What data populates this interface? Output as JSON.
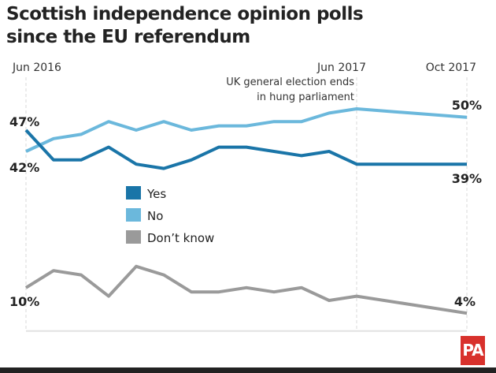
{
  "chart_data": {
    "type": "line",
    "title": "Scottish independence opinion polls since the EU referendum",
    "x": [
      "2016-06",
      "2016-07",
      "2016-08",
      "2016-09",
      "2016-10",
      "2016-11",
      "2016-12",
      "2017-01",
      "2017-02",
      "2017-03",
      "2017-04",
      "2017-05",
      "2017-06",
      "2017-10"
    ],
    "x_tick_labels": [
      {
        "x": "2016-06",
        "label": "Jun 2016"
      },
      {
        "x": "2017-06",
        "label": "Jun 2017"
      },
      {
        "x": "2017-10",
        "label": "Oct 2017"
      }
    ],
    "ylim": [
      0,
      55
    ],
    "grid": "vertical dashed at ticks",
    "legend_placement": "center-left",
    "annotation": {
      "x": "2017-06",
      "lines": [
        "UK general election ends",
        "in hung parliament"
      ]
    },
    "series": [
      {
        "name": "Yes",
        "color": "#1a75a8",
        "values": [
          47,
          40,
          40,
          43,
          39,
          38,
          40,
          43,
          43,
          42,
          41,
          42,
          39,
          39
        ],
        "start_label": "47%",
        "end_label": "39%"
      },
      {
        "name": "No",
        "color": "#6bb8dc",
        "values": [
          42,
          45,
          46,
          49,
          47,
          49,
          47,
          48,
          48,
          49,
          49,
          51,
          52,
          50
        ],
        "start_label": "42%",
        "end_label": "50%"
      },
      {
        "name": "Don’t know",
        "color": "#9a9a9a",
        "values": [
          10,
          14,
          13,
          8,
          15,
          13,
          9,
          9,
          10,
          9,
          10,
          7,
          8,
          4
        ],
        "start_label": "10%",
        "end_label": "4%"
      }
    ]
  },
  "branding": {
    "logo": "PA",
    "logo_color": "#d8312c"
  }
}
